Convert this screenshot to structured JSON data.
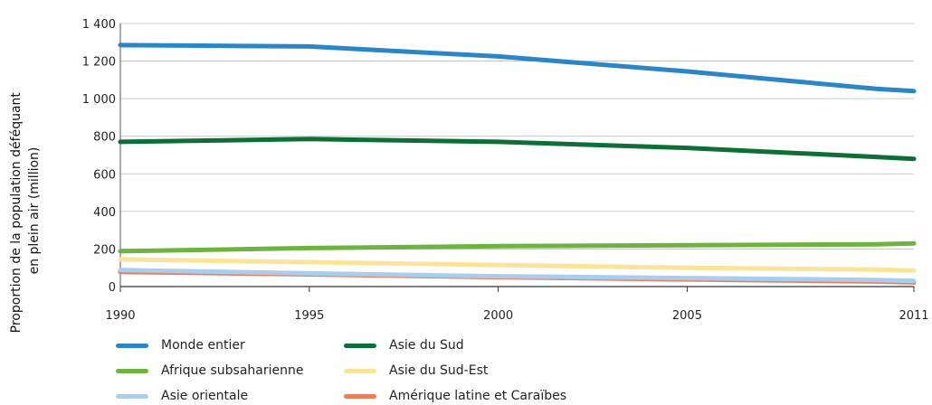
{
  "chart_data": {
    "type": "line",
    "title": "",
    "xlabel": "",
    "ylabel": [
      "Proportion de la population déféquant",
      "en plein air (million)"
    ],
    "x": [
      1990,
      1995,
      2000,
      2005,
      2010,
      2011
    ],
    "xticks": [
      "1990",
      "1995",
      "2000",
      "2005",
      "2011"
    ],
    "yticks": [
      "0",
      "200",
      "400",
      "600",
      "800",
      "1 000",
      "1 200",
      "1 400"
    ],
    "ylim": [
      0,
      1400
    ],
    "grid": "horizontal",
    "legend_position": "bottom",
    "series": [
      {
        "name": "Monde entier",
        "color": "#2b86c6",
        "values": [
          1285,
          1278,
          1225,
          1145,
          1052,
          1040
        ]
      },
      {
        "name": "Asie du Sud",
        "color": "#0d6e36",
        "values": [
          770,
          785,
          770,
          738,
          690,
          680
        ]
      },
      {
        "name": "Afrique subsaharienne",
        "color": "#6db33f",
        "values": [
          188,
          205,
          215,
          220,
          225,
          230
        ]
      },
      {
        "name": "Asie du Sud-Est",
        "color": "#fbe49a",
        "values": [
          145,
          130,
          115,
          100,
          90,
          85
        ]
      },
      {
        "name": "Asie orientale",
        "color": "#a9cdea",
        "values": [
          88,
          70,
          55,
          45,
          35,
          30
        ]
      },
      {
        "name": "Amérique latine et Caraïbes",
        "color": "#ec7d5c",
        "values": [
          78,
          65,
          50,
          38,
          27,
          22
        ]
      }
    ]
  }
}
